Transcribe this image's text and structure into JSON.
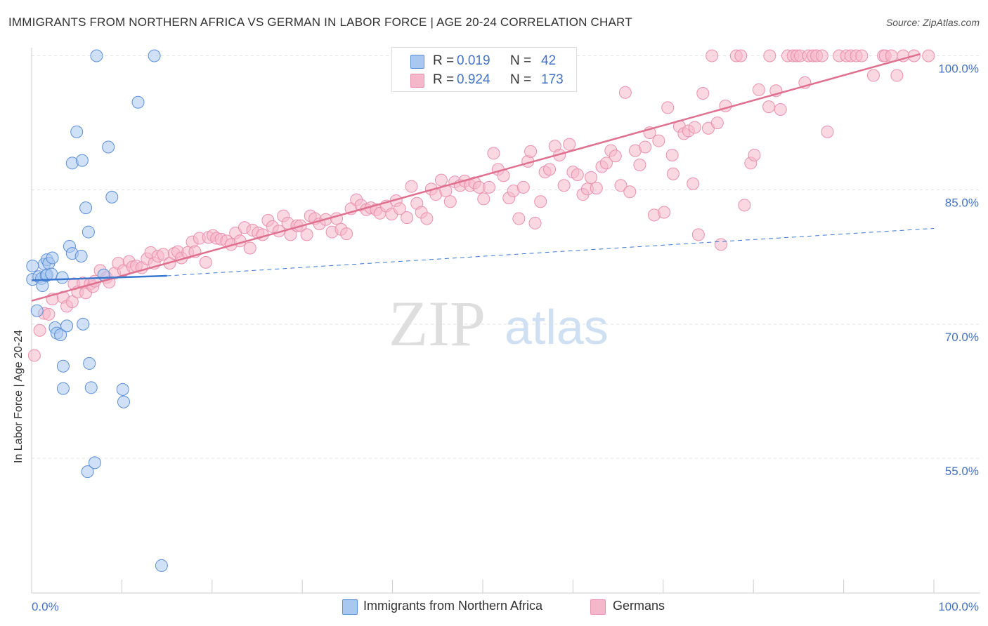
{
  "title": "IMMIGRANTS FROM NORTHERN AFRICA VS GERMAN IN LABOR FORCE | AGE 20-24 CORRELATION CHART",
  "source": "Source: ZipAtlas.com",
  "watermark": {
    "zip": "ZIP",
    "atlas": "atlas"
  },
  "colors": {
    "blue_fill": "#a9c8f0",
    "blue_stroke": "#5b8fd6",
    "blue_line": "#3a78d0",
    "pink_fill": "#f5b8cb",
    "pink_stroke": "#e890ae",
    "pink_line": "#e0708f",
    "tick_label": "#4472c4",
    "grid": "#e0e0e0"
  },
  "legend": {
    "rows": [
      {
        "r_label": "R =",
        "r_value": "0.019",
        "n_label": "N =",
        "n_value": "42"
      },
      {
        "r_label": "R =",
        "r_value": "0.924",
        "n_label": "N =",
        "n_value": "173"
      }
    ]
  },
  "bottom_legend": [
    {
      "label": "Immigrants from Northern Africa"
    },
    {
      "label": "Germans"
    }
  ],
  "chart_data": {
    "type": "scatter",
    "title": "IMMIGRANTS FROM NORTHERN AFRICA VS GERMAN IN LABOR FORCE | AGE 20-24 CORRELATION CHART",
    "xlabel": "",
    "ylabel": "In Labor Force | Age 20-24",
    "xlim": [
      0,
      100
    ],
    "ylim": [
      40,
      102
    ],
    "x_tick_labels": [
      "0.0%",
      "100.0%"
    ],
    "y_ticks": [
      {
        "value": 55,
        "label": "55.0%"
      },
      {
        "value": 70,
        "label": "70.0%"
      },
      {
        "value": 85,
        "label": "85.0%"
      },
      {
        "value": 100,
        "label": "100.0%"
      }
    ],
    "series": [
      {
        "name": "Immigrants from Northern Africa",
        "r": 0.019,
        "n": 42,
        "trend": {
          "solid": [
            [
              0,
              74.9
            ],
            [
              15,
              75.4
            ]
          ],
          "dashed": [
            [
              15,
              75.4
            ],
            [
              100,
              80.7
            ]
          ]
        },
        "points": [
          [
            0.1,
            76.5
          ],
          [
            0.1,
            75.0
          ],
          [
            0.6,
            71.5
          ],
          [
            0.8,
            75.3
          ],
          [
            1.1,
            75.1
          ],
          [
            1.2,
            74.3
          ],
          [
            1.4,
            76.7
          ],
          [
            1.6,
            75.4
          ],
          [
            1.7,
            75.5
          ],
          [
            1.7,
            77.2
          ],
          [
            1.9,
            76.8
          ],
          [
            2.2,
            75.6
          ],
          [
            2.3,
            77.4
          ],
          [
            2.6,
            69.6
          ],
          [
            2.8,
            69.0
          ],
          [
            3.2,
            68.8
          ],
          [
            3.4,
            75.2
          ],
          [
            3.5,
            65.3
          ],
          [
            3.5,
            62.8
          ],
          [
            3.9,
            69.8
          ],
          [
            4.2,
            78.7
          ],
          [
            4.5,
            77.9
          ],
          [
            4.5,
            88.0
          ],
          [
            5.0,
            91.5
          ],
          [
            5.5,
            77.6
          ],
          [
            5.6,
            88.3
          ],
          [
            5.7,
            70.0
          ],
          [
            6.0,
            83.0
          ],
          [
            6.3,
            80.3
          ],
          [
            6.4,
            65.6
          ],
          [
            6.6,
            62.9
          ],
          [
            6.2,
            53.5
          ],
          [
            7.0,
            54.5
          ],
          [
            7.2,
            100.0
          ],
          [
            8.0,
            75.5
          ],
          [
            8.5,
            89.8
          ],
          [
            8.9,
            84.2
          ],
          [
            10.1,
            62.7
          ],
          [
            10.2,
            61.3
          ],
          [
            11.8,
            94.8
          ],
          [
            13.6,
            100.0
          ],
          [
            14.4,
            43.0
          ]
        ]
      },
      {
        "name": "Germans",
        "r": 0.924,
        "n": 173,
        "trend": {
          "solid": [
            [
              0,
              72.6
            ],
            [
              98.5,
              100.2
            ]
          ]
        },
        "points": [
          [
            0.3,
            66.5
          ],
          [
            0.9,
            69.3
          ],
          [
            1.4,
            71.2
          ],
          [
            1.9,
            71.1
          ],
          [
            2.3,
            72.8
          ],
          [
            3.5,
            73.0
          ],
          [
            3.9,
            72.0
          ],
          [
            4.5,
            72.5
          ],
          [
            4.7,
            74.5
          ],
          [
            5.1,
            73.6
          ],
          [
            5.7,
            74.6
          ],
          [
            6.0,
            73.5
          ],
          [
            6.5,
            74.5
          ],
          [
            6.8,
            74.2
          ],
          [
            7.0,
            74.8
          ],
          [
            7.6,
            76.0
          ],
          [
            8.3,
            75.2
          ],
          [
            8.6,
            74.7
          ],
          [
            9.2,
            75.7
          ],
          [
            9.6,
            76.8
          ],
          [
            10.2,
            76.0
          ],
          [
            10.8,
            77.0
          ],
          [
            11.2,
            76.4
          ],
          [
            11.6,
            76.5
          ],
          [
            12.2,
            76.3
          ],
          [
            12.8,
            77.3
          ],
          [
            13.2,
            78.0
          ],
          [
            13.6,
            76.8
          ],
          [
            14.0,
            77.6
          ],
          [
            14.6,
            77.8
          ],
          [
            15.3,
            76.8
          ],
          [
            15.8,
            77.9
          ],
          [
            16.2,
            78.1
          ],
          [
            16.6,
            77.4
          ],
          [
            17.3,
            78.0
          ],
          [
            17.8,
            79.2
          ],
          [
            18.1,
            78.1
          ],
          [
            18.6,
            79.6
          ],
          [
            19.3,
            76.9
          ],
          [
            19.6,
            79.7
          ],
          [
            20.1,
            79.9
          ],
          [
            20.5,
            79.6
          ],
          [
            21.0,
            79.5
          ],
          [
            21.6,
            79.3
          ],
          [
            22.1,
            78.9
          ],
          [
            22.6,
            80.2
          ],
          [
            23.1,
            79.3
          ],
          [
            23.6,
            80.8
          ],
          [
            24.2,
            78.5
          ],
          [
            24.5,
            80.5
          ],
          [
            25.1,
            80.2
          ],
          [
            25.6,
            80.0
          ],
          [
            26.2,
            81.6
          ],
          [
            26.7,
            80.9
          ],
          [
            27.4,
            80.4
          ],
          [
            27.9,
            82.1
          ],
          [
            28.4,
            81.3
          ],
          [
            28.7,
            80.0
          ],
          [
            29.4,
            81.0
          ],
          [
            29.8,
            81.0
          ],
          [
            30.5,
            80.0
          ],
          [
            30.9,
            82.1
          ],
          [
            31.4,
            81.8
          ],
          [
            31.9,
            81.2
          ],
          [
            32.6,
            81.7
          ],
          [
            33.3,
            80.3
          ],
          [
            33.8,
            81.8
          ],
          [
            34.3,
            80.6
          ],
          [
            34.9,
            80.1
          ],
          [
            35.4,
            82.9
          ],
          [
            36.0,
            83.9
          ],
          [
            36.5,
            83.3
          ],
          [
            37.1,
            82.8
          ],
          [
            37.6,
            83.0
          ],
          [
            38.2,
            82.8
          ],
          [
            38.6,
            82.4
          ],
          [
            39.3,
            83.2
          ],
          [
            39.9,
            82.3
          ],
          [
            40.4,
            83.8
          ],
          [
            40.8,
            82.9
          ],
          [
            41.6,
            81.9
          ],
          [
            42.1,
            85.4
          ],
          [
            42.7,
            83.5
          ],
          [
            43.2,
            82.5
          ],
          [
            43.8,
            81.8
          ],
          [
            44.3,
            85.1
          ],
          [
            44.8,
            84.5
          ],
          [
            45.4,
            86.1
          ],
          [
            45.9,
            84.9
          ],
          [
            46.4,
            83.7
          ],
          [
            46.9,
            85.9
          ],
          [
            47.5,
            85.5
          ],
          [
            48.0,
            86.0
          ],
          [
            48.6,
            85.5
          ],
          [
            49.1,
            85.8
          ],
          [
            49.6,
            85.3
          ],
          [
            50.1,
            84.0
          ],
          [
            50.7,
            85.3
          ],
          [
            51.2,
            89.1
          ],
          [
            51.7,
            87.3
          ],
          [
            52.3,
            86.6
          ],
          [
            52.9,
            84.1
          ],
          [
            53.4,
            84.9
          ],
          [
            54.0,
            81.8
          ],
          [
            54.5,
            85.3
          ],
          [
            55.0,
            88.2
          ],
          [
            55.3,
            89.3
          ],
          [
            55.8,
            81.3
          ],
          [
            56.4,
            83.7
          ],
          [
            56.9,
            87.0
          ],
          [
            57.4,
            87.3
          ],
          [
            58.0,
            89.9
          ],
          [
            58.5,
            88.9
          ],
          [
            59.0,
            85.5
          ],
          [
            59.6,
            90.1
          ],
          [
            60.0,
            87.0
          ],
          [
            60.5,
            86.7
          ],
          [
            61.1,
            84.5
          ],
          [
            61.6,
            85.1
          ],
          [
            62.0,
            86.4
          ],
          [
            62.6,
            85.2
          ],
          [
            63.2,
            87.6
          ],
          [
            63.7,
            88.0
          ],
          [
            64.2,
            89.4
          ],
          [
            64.7,
            88.8
          ],
          [
            65.3,
            85.5
          ],
          [
            65.8,
            95.9
          ],
          [
            66.3,
            84.8
          ],
          [
            66.9,
            89.4
          ],
          [
            67.4,
            87.8
          ],
          [
            68.0,
            89.8
          ],
          [
            68.5,
            91.4
          ],
          [
            69.0,
            82.2
          ],
          [
            69.5,
            90.5
          ],
          [
            70.1,
            82.5
          ],
          [
            70.5,
            94.2
          ],
          [
            71.0,
            88.9
          ],
          [
            71.1,
            86.8
          ],
          [
            71.8,
            92.1
          ],
          [
            72.3,
            91.3
          ],
          [
            72.8,
            91.6
          ],
          [
            73.3,
            85.7
          ],
          [
            73.5,
            92.0
          ],
          [
            73.9,
            80.0
          ],
          [
            74.4,
            95.8
          ],
          [
            75.0,
            91.9
          ],
          [
            75.4,
            100.0
          ],
          [
            76.0,
            92.5
          ],
          [
            76.4,
            78.9
          ],
          [
            76.9,
            94.4
          ],
          [
            78.1,
            100.0
          ],
          [
            78.6,
            100.0
          ],
          [
            79.0,
            83.3
          ],
          [
            79.7,
            88.0
          ],
          [
            80.1,
            88.9
          ],
          [
            80.6,
            96.2
          ],
          [
            81.7,
            94.3
          ],
          [
            81.8,
            100.0
          ],
          [
            82.5,
            96.1
          ],
          [
            83.0,
            94.0
          ],
          [
            83.8,
            100.0
          ],
          [
            84.4,
            100.0
          ],
          [
            84.8,
            100.0
          ],
          [
            85.2,
            100.0
          ],
          [
            85.7,
            97.0
          ],
          [
            86.1,
            100.0
          ],
          [
            86.6,
            100.0
          ],
          [
            87.0,
            100.0
          ],
          [
            87.6,
            100.0
          ],
          [
            88.2,
            91.5
          ],
          [
            89.5,
            100.0
          ],
          [
            90.3,
            100.0
          ],
          [
            90.8,
            100.0
          ],
          [
            91.4,
            100.0
          ],
          [
            92.0,
            100.0
          ],
          [
            93.3,
            97.8
          ],
          [
            94.4,
            100.0
          ],
          [
            94.6,
            100.0
          ],
          [
            95.3,
            100.0
          ],
          [
            95.9,
            97.8
          ],
          [
            96.6,
            100.0
          ],
          [
            97.8,
            100.0
          ],
          [
            99.4,
            100.0
          ]
        ]
      }
    ]
  }
}
